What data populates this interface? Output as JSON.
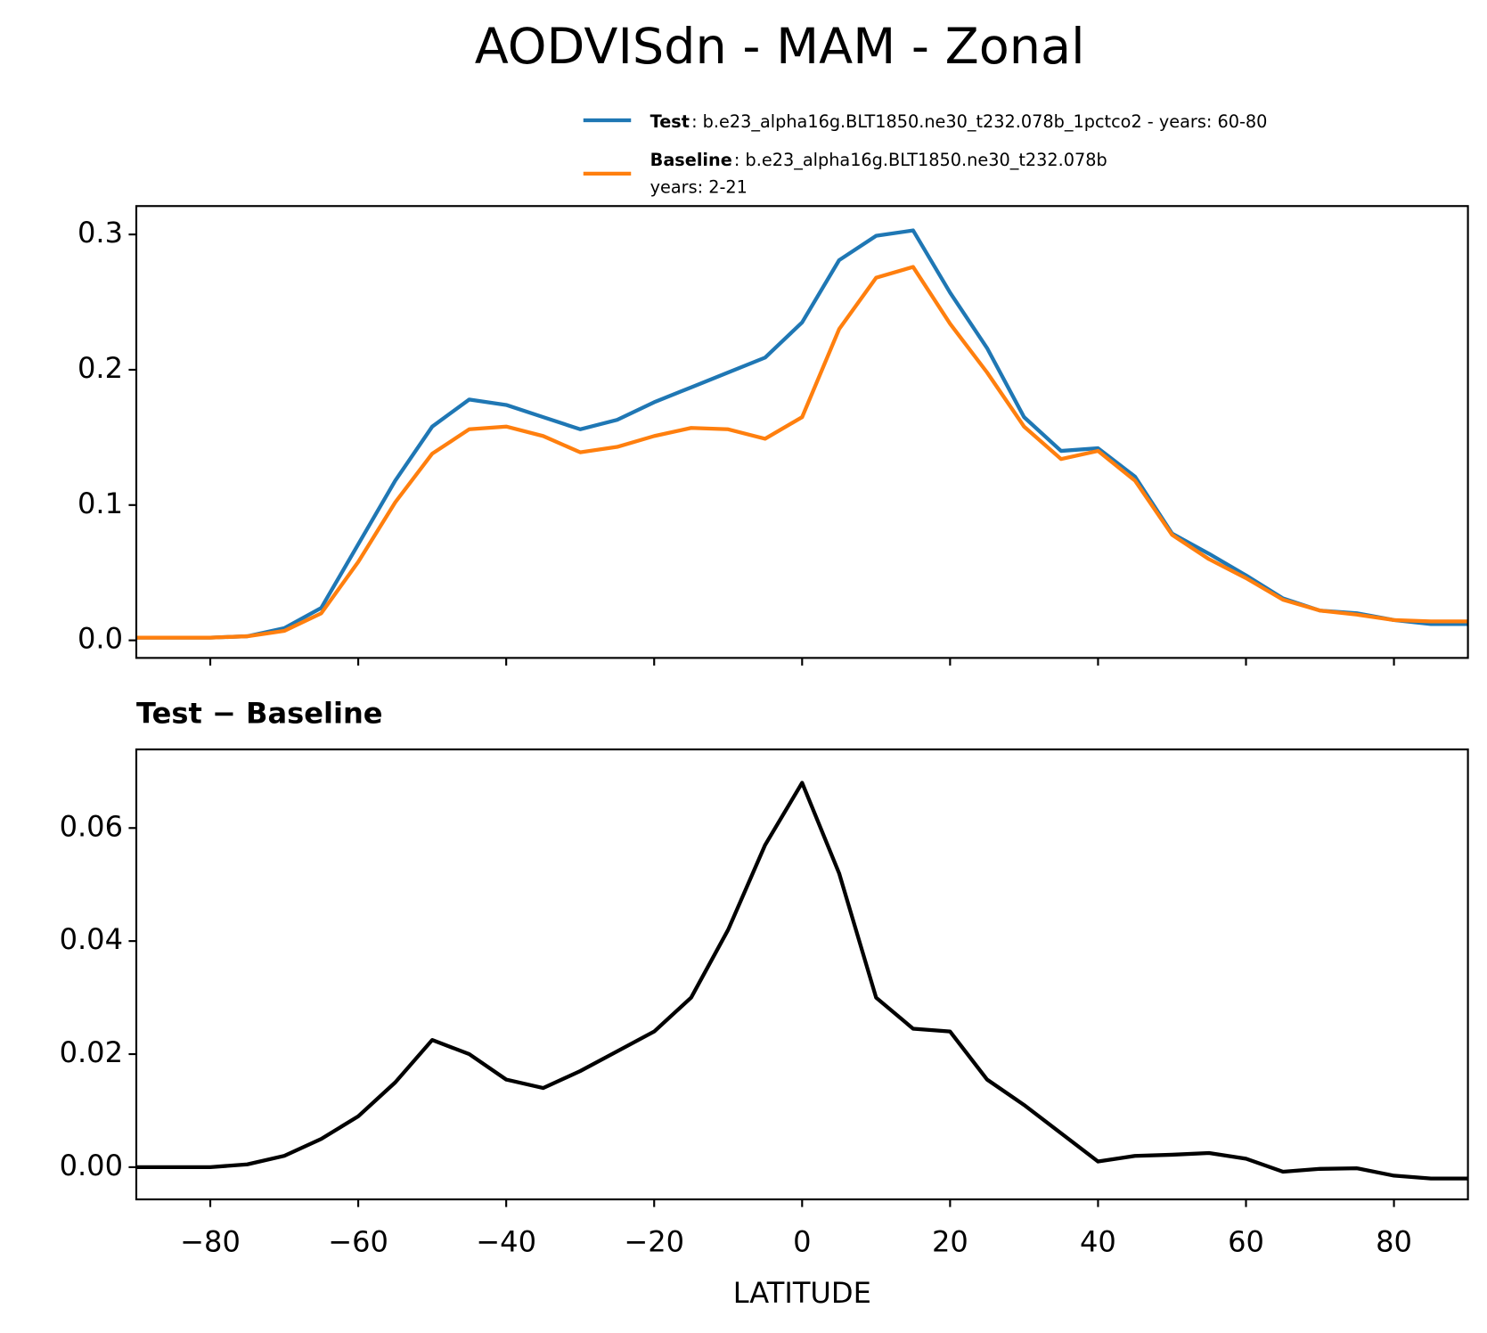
{
  "chart_data": [
    {
      "type": "line",
      "title": "AODVISdn - MAM - Zonal",
      "x": [
        -90,
        -85,
        -80,
        -75,
        -70,
        -65,
        -60,
        -55,
        -50,
        -45,
        -40,
        -35,
        -30,
        -25,
        -20,
        -15,
        -10,
        -5,
        0,
        5,
        10,
        15,
        20,
        25,
        30,
        35,
        40,
        45,
        50,
        55,
        60,
        65,
        70,
        75,
        80,
        85,
        90
      ],
      "series": [
        {
          "name": "Test",
          "description": [
            ": b.e23_alpha16g.BLT1850.ne30_t232.078b_1pctco2 - years: 60-80"
          ],
          "color": "#1f77b4",
          "values": [
            0.002,
            0.002,
            0.002,
            0.003,
            0.009,
            0.024,
            0.071,
            0.118,
            0.158,
            0.178,
            0.174,
            0.165,
            0.156,
            0.163,
            0.176,
            0.187,
            0.198,
            0.209,
            0.235,
            0.281,
            0.299,
            0.303,
            0.257,
            0.216,
            0.165,
            0.14,
            0.142,
            0.121,
            0.079,
            0.064,
            0.048,
            0.031,
            0.022,
            0.02,
            0.015,
            0.012,
            0.012
          ]
        },
        {
          "name": "Baseline",
          "description": [
            ": b.e23_alpha16g.BLT1850.ne30_t232.078b",
            "years: 2-21"
          ],
          "color": "#ff7f0e",
          "values": [
            0.002,
            0.002,
            0.002,
            0.003,
            0.007,
            0.02,
            0.058,
            0.102,
            0.138,
            0.156,
            0.158,
            0.151,
            0.139,
            0.143,
            0.151,
            0.157,
            0.156,
            0.149,
            0.165,
            0.23,
            0.268,
            0.276,
            0.234,
            0.198,
            0.158,
            0.134,
            0.14,
            0.118,
            0.078,
            0.06,
            0.046,
            0.03,
            0.022,
            0.019,
            0.015,
            0.014,
            0.014
          ]
        }
      ],
      "xlim": [
        -90,
        90
      ],
      "xticks": [
        -80,
        -60,
        -40,
        -20,
        0,
        20,
        40,
        60,
        80
      ],
      "show_xtick_labels": false,
      "ylim": [
        -0.013,
        0.321
      ],
      "yticks": [
        {
          "value": 0,
          "label": "0.0"
        },
        0.1,
        0.2,
        0.3
      ]
    },
    {
      "type": "line",
      "title": "Test − Baseline",
      "xlabel": "LATITUDE",
      "x": [
        -90,
        -85,
        -80,
        -75,
        -70,
        -65,
        -60,
        -55,
        -50,
        -45,
        -40,
        -35,
        -30,
        -25,
        -20,
        -15,
        -10,
        -5,
        0,
        5,
        10,
        15,
        20,
        25,
        30,
        35,
        40,
        45,
        50,
        55,
        60,
        65,
        70,
        75,
        80,
        85,
        90
      ],
      "series": [
        {
          "color": "#000000",
          "values": [
            0,
            0,
            0,
            0.0005,
            0.002,
            0.005,
            0.009,
            0.015,
            0.0225,
            0.02,
            0.0155,
            0.014,
            0.017,
            0.0205,
            0.024,
            0.03,
            0.042,
            0.057,
            0.068,
            0.052,
            0.03,
            0.0245,
            0.024,
            0.0155,
            0.011,
            0.006,
            0.001,
            0.002,
            0.0022,
            0.0025,
            0.0015,
            -0.0008,
            -0.0003,
            -0.0002,
            -0.0015,
            -0.002,
            -0.002
          ]
        }
      ],
      "xlim": [
        -90,
        90
      ],
      "xticks": [
        {
          "value": -80,
          "label": "−80"
        },
        {
          "value": -60,
          "label": "−60"
        },
        {
          "value": -40,
          "label": "−40"
        },
        {
          "value": -20,
          "label": "−20"
        },
        0,
        20,
        40,
        60,
        80
      ],
      "show_xtick_labels": true,
      "ylim": [
        -0.0057,
        0.0739
      ],
      "yticks": [
        {
          "value": 0,
          "label": "0.00"
        },
        {
          "value": 0.02,
          "label": "0.02"
        },
        {
          "value": 0.04,
          "label": "0.04"
        },
        {
          "value": 0.06,
          "label": "0.06"
        }
      ]
    }
  ]
}
